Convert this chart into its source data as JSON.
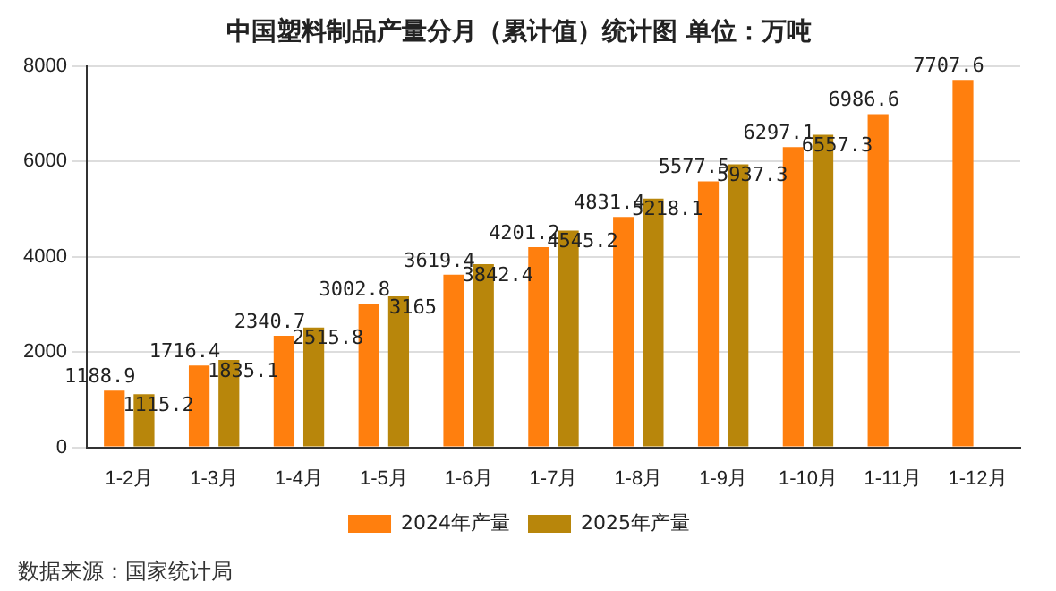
{
  "chart_data": {
    "type": "bar",
    "title": "中国塑料制品产量分月（累计值）统计图 单位：万吨",
    "categories": [
      "1-2月",
      "1-3月",
      "1-4月",
      "1-5月",
      "1-6月",
      "1-7月",
      "1-8月",
      "1-9月",
      "1-10月",
      "1-11月",
      "1-12月"
    ],
    "series": [
      {
        "name": "2024年产量",
        "color": "#ff7f0e",
        "values": [
          1188.9,
          1716.4,
          2340.7,
          3002.8,
          3619.4,
          4201.2,
          4831.4,
          5577.5,
          6297.1,
          6986.6,
          7707.6
        ]
      },
      {
        "name": "2025年产量",
        "color": "#b8860b",
        "values": [
          1115.2,
          1835.1,
          2515.8,
          3165,
          3842.4,
          4545.2,
          5218.1,
          5937.3,
          6557.3,
          null,
          null
        ]
      }
    ],
    "ylim": [
      0,
      8000
    ],
    "yticks": [
      0,
      2000,
      4000,
      6000,
      8000
    ],
    "grid": "y",
    "legend": "bottom",
    "data_labels": true,
    "annotations": [
      "数据来源：国家统计局"
    ]
  }
}
